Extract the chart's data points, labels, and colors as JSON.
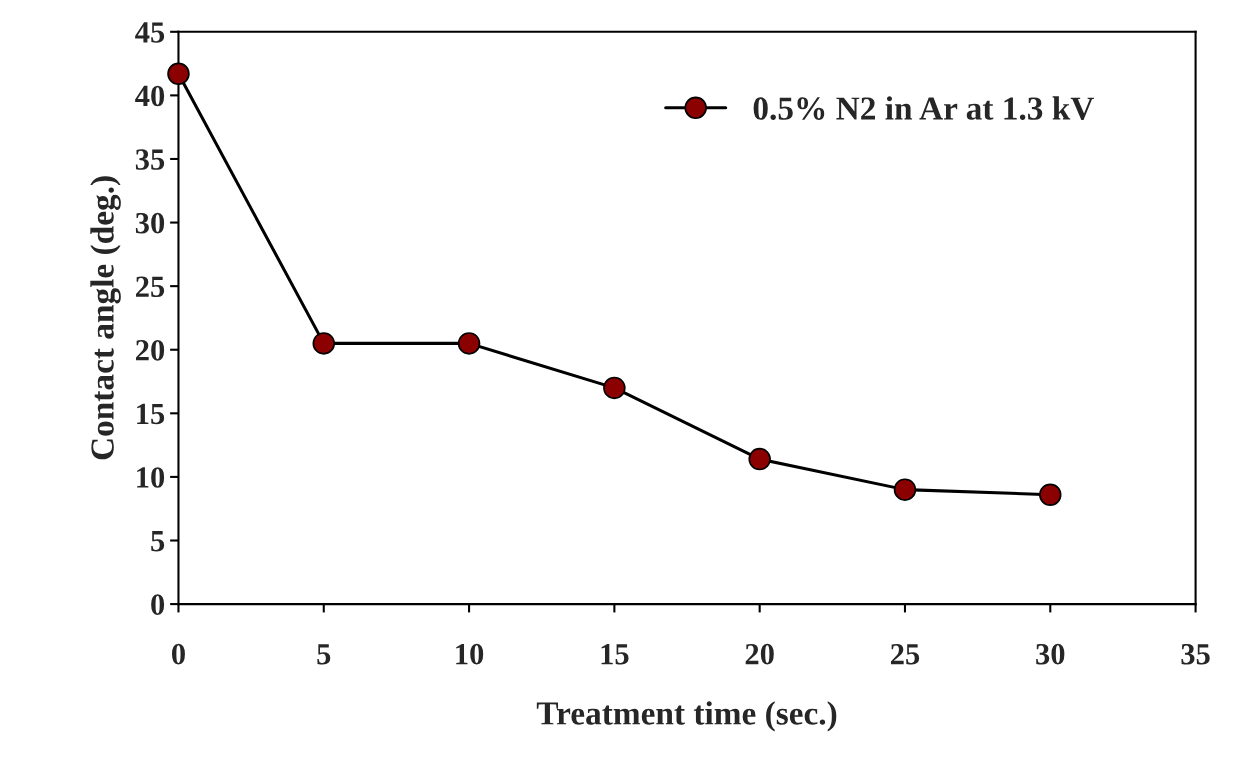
{
  "chart_data": {
    "type": "line",
    "xlabel": "Treatment time (sec.)",
    "ylabel": "Contact angle (deg.)",
    "x": [
      0,
      5,
      10,
      15,
      20,
      25,
      30
    ],
    "series": [
      {
        "name": "0.5% N2 in Ar at 1.3 kV",
        "color": "#8b0000",
        "values": [
          41.7,
          20.5,
          20.5,
          17,
          11.4,
          9,
          8.6
        ]
      }
    ],
    "xlim": [
      0,
      35
    ],
    "xticks": [
      0,
      5,
      10,
      15,
      20,
      25,
      30,
      35
    ],
    "ylim": [
      0,
      45
    ],
    "yticks": [
      0,
      5,
      10,
      15,
      20,
      25,
      30,
      35,
      40,
      45
    ],
    "grid": false,
    "legend": "top right",
    "marker": "circle",
    "line_style": "solid"
  }
}
